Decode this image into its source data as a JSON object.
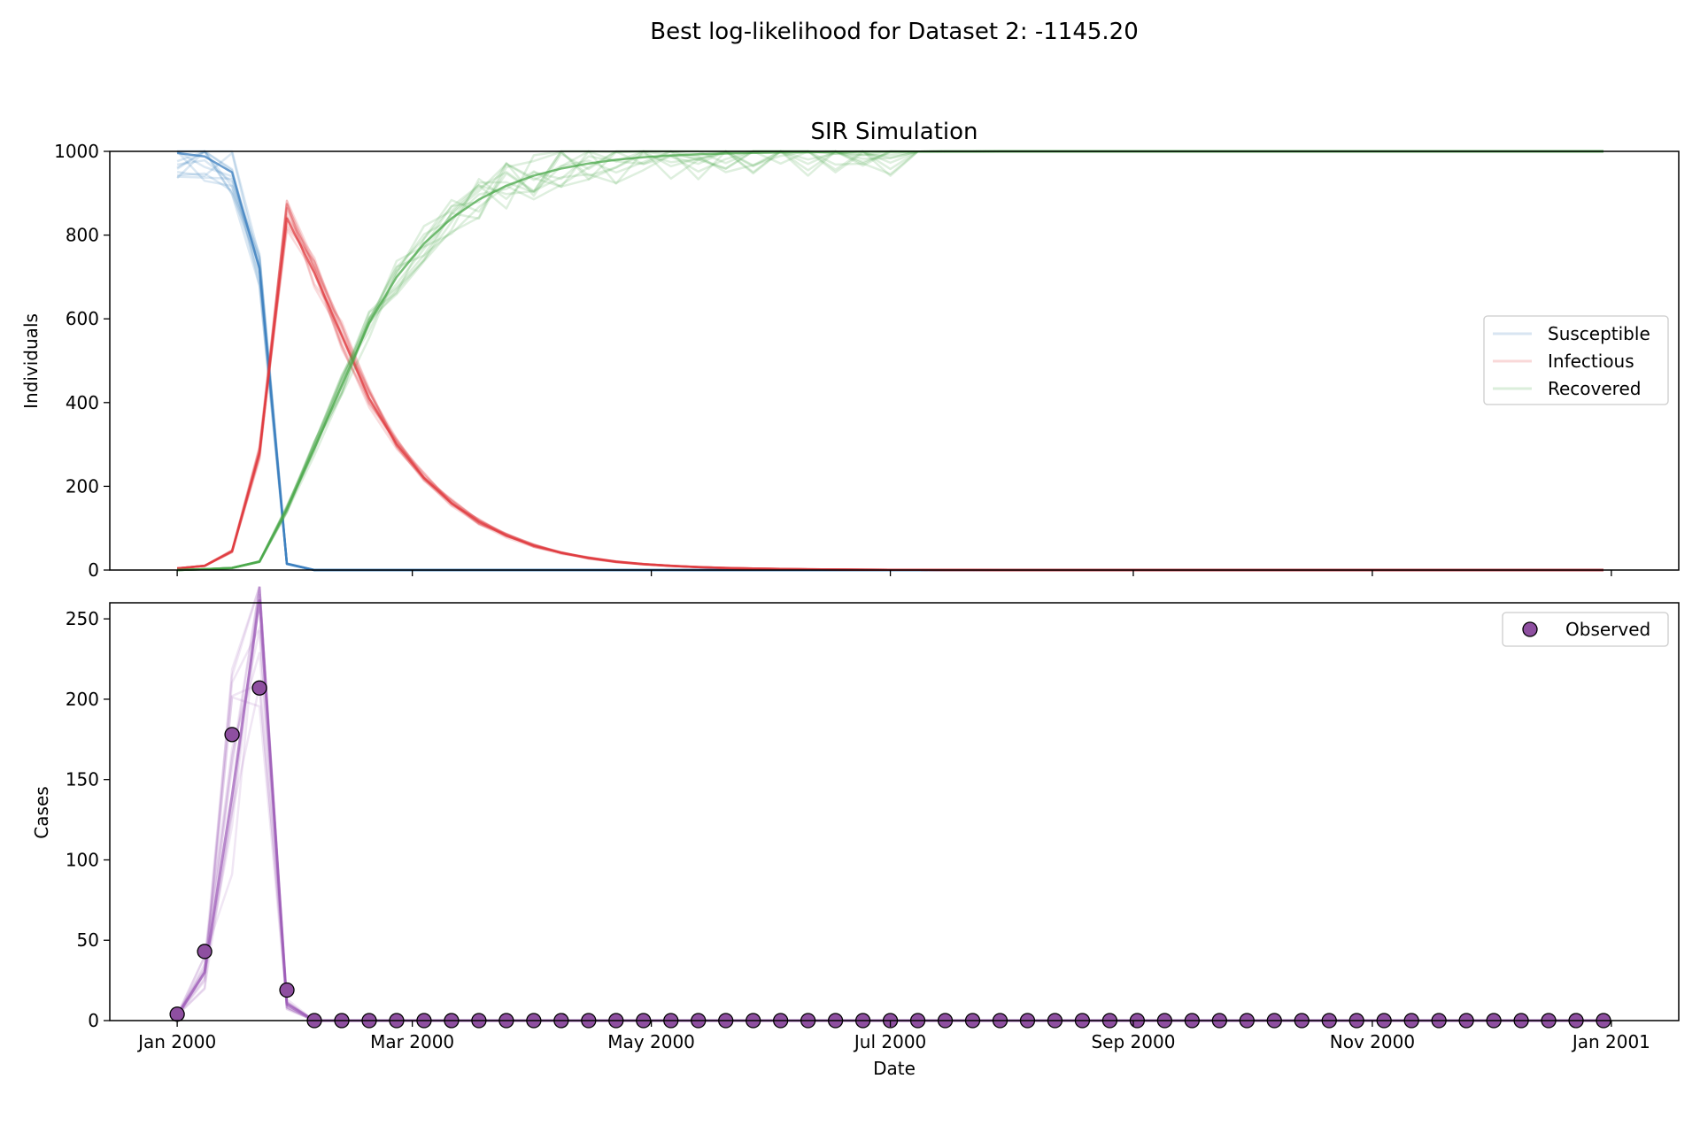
{
  "figure": {
    "suptitle": "Best log-likelihood for Dataset 2: -1145.20"
  },
  "chart_data": [
    {
      "type": "line",
      "title": "SIR Simulation",
      "xlabel": "",
      "ylabel": "Individuals",
      "x_dates": [
        "2000-01-01",
        "2000-01-08",
        "2000-01-15",
        "2000-01-22",
        "2000-01-29",
        "2000-02-05",
        "2000-02-12",
        "2000-02-19",
        "2000-02-26",
        "2000-03-04",
        "2000-03-11",
        "2000-03-18",
        "2000-03-25",
        "2000-04-01",
        "2000-04-08",
        "2000-04-15",
        "2000-04-22",
        "2000-04-29",
        "2000-05-06",
        "2000-05-13",
        "2000-05-20",
        "2000-05-27",
        "2000-06-03",
        "2000-06-10",
        "2000-06-17",
        "2000-06-24",
        "2000-07-01",
        "2000-07-08",
        "2000-07-15",
        "2000-07-22",
        "2000-07-29",
        "2000-08-05",
        "2000-08-12",
        "2000-08-19",
        "2000-08-26",
        "2000-09-02",
        "2000-09-09",
        "2000-09-16",
        "2000-09-23",
        "2000-09-30",
        "2000-10-07",
        "2000-10-14",
        "2000-10-21",
        "2000-10-28",
        "2000-11-04",
        "2000-11-11",
        "2000-11-18",
        "2000-11-25",
        "2000-12-02",
        "2000-12-09",
        "2000-12-16",
        "2000-12-23",
        "2000-12-30"
      ],
      "x_ticks": [
        "Jan 2000",
        "Mar 2000",
        "May 2000",
        "Jul 2000",
        "Sep 2000",
        "Nov 2000",
        "Jan 2001"
      ],
      "x_tick_dates": [
        "2000-01-01",
        "2000-03-01",
        "2000-05-01",
        "2000-07-01",
        "2000-09-01",
        "2000-11-01",
        "2001-01-01"
      ],
      "ylim": [
        0,
        1000
      ],
      "yticks": [
        0,
        200,
        400,
        600,
        800,
        1000
      ],
      "legend_position": "center-right",
      "series": [
        {
          "name": "Susceptible",
          "color": "#3a7dbf",
          "values": [
            996,
            988,
            950,
            720,
            15,
            0,
            0,
            0,
            0,
            0,
            0,
            0,
            0,
            0,
            0,
            0,
            0,
            0,
            0,
            0,
            0,
            0,
            0,
            0,
            0,
            0,
            0,
            0,
            0,
            0,
            0,
            0,
            0,
            0,
            0,
            0,
            0,
            0,
            0,
            0,
            0,
            0,
            0,
            0,
            0,
            0,
            0,
            0,
            0,
            0,
            0,
            0,
            0
          ]
        },
        {
          "name": "Infectious",
          "color": "#e03a3e",
          "values": [
            4,
            10,
            45,
            280,
            840,
            710,
            560,
            410,
            300,
            220,
            160,
            115,
            82,
            58,
            41,
            29,
            20,
            14,
            10,
            7,
            5,
            3.5,
            2.5,
            1.8,
            1.3,
            0.9,
            0.6,
            0.4,
            0.3,
            0.2,
            0.1,
            0.1,
            0,
            0,
            0,
            0,
            0,
            0,
            0,
            0,
            0,
            0,
            0,
            0,
            0,
            0,
            0,
            0,
            0,
            0,
            0,
            0,
            0
          ]
        },
        {
          "name": "Recovered",
          "color": "#4aa84a",
          "values": [
            0,
            2,
            5,
            20,
            145,
            290,
            440,
            590,
            700,
            780,
            840,
            885,
            918,
            942,
            959,
            971,
            980,
            986,
            990,
            993,
            995,
            996.5,
            997.5,
            998.2,
            998.7,
            999.1,
            999.4,
            999.6,
            999.7,
            999.8,
            999.9,
            999.9,
            1000,
            1000,
            1000,
            1000,
            1000,
            1000,
            1000,
            1000,
            1000,
            1000,
            1000,
            1000,
            1000,
            1000,
            1000,
            1000,
            1000,
            1000,
            1000,
            1000,
            1000
          ]
        }
      ]
    },
    {
      "type": "scatter",
      "title": "",
      "xlabel": "Date",
      "ylabel": "Cases",
      "ylim": [
        0,
        260
      ],
      "yticks": [
        0,
        50,
        100,
        150,
        200,
        250
      ],
      "legend_position": "top-right",
      "fit_line": {
        "color": "#9b59b6",
        "values": [
          3,
          30,
          140,
          265,
          10,
          0,
          0,
          0,
          0,
          0,
          0,
          0,
          0,
          0,
          0,
          0,
          0,
          0,
          0,
          0,
          0,
          0,
          0,
          0,
          0,
          0,
          0,
          0,
          0,
          0,
          0,
          0,
          0,
          0,
          0,
          0,
          0,
          0,
          0,
          0,
          0,
          0,
          0,
          0,
          0,
          0,
          0,
          0,
          0,
          0,
          0,
          0,
          0
        ]
      },
      "series": [
        {
          "name": "Observed",
          "color": "#8e4fa0",
          "edge_color": "#000000",
          "values": [
            4,
            43,
            178,
            207,
            19,
            0,
            0,
            0,
            0,
            0,
            0,
            0,
            0,
            0,
            0,
            0,
            0,
            0,
            0,
            0,
            0,
            0,
            0,
            0,
            0,
            0,
            0,
            0,
            0,
            0,
            0,
            0,
            0,
            0,
            0,
            0,
            0,
            0,
            0,
            0,
            0,
            0,
            0,
            0,
            0,
            0,
            0,
            0,
            0,
            0,
            0,
            0,
            0
          ]
        }
      ]
    }
  ]
}
